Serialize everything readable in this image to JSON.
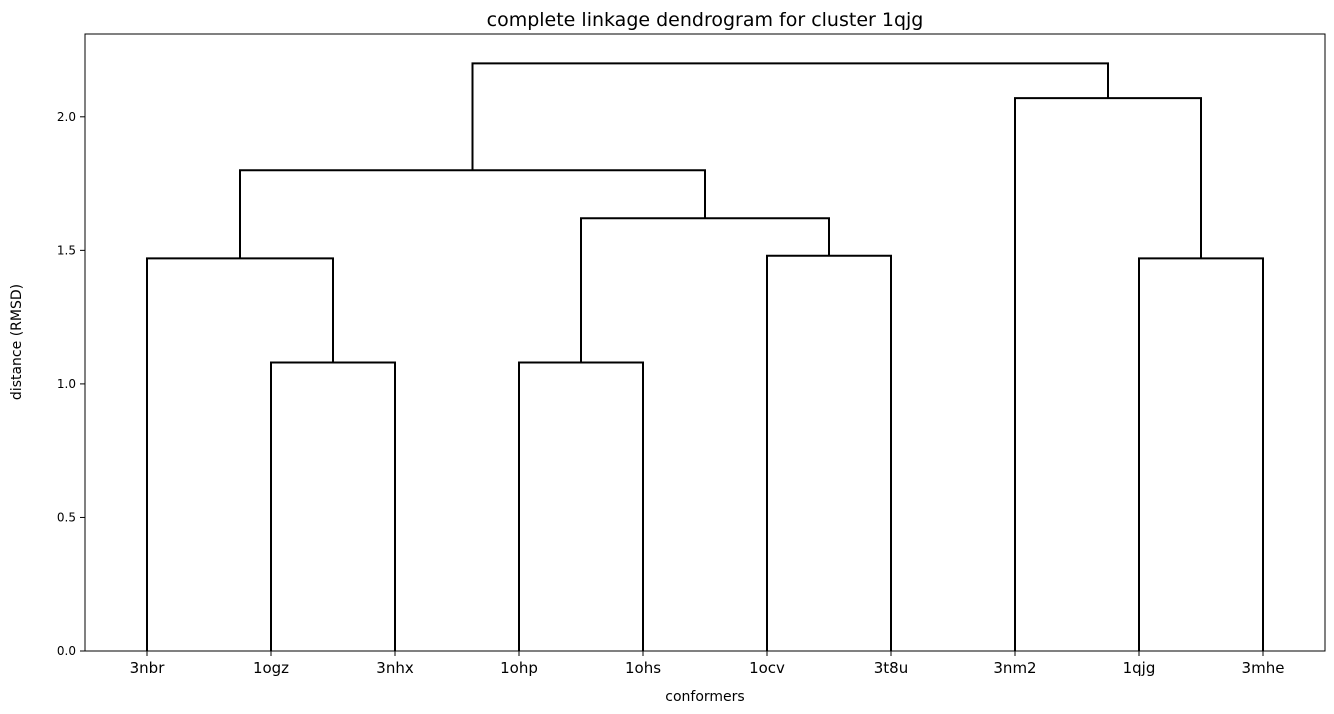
{
  "chart_data": {
    "type": "dendrogram",
    "title": "complete linkage dendrogram for cluster 1qjg",
    "xlabel": "conformers",
    "ylabel": "distance (RMSD)",
    "ylim": [
      0.0,
      2.31
    ],
    "yticks": [
      0.0,
      0.5,
      1.0,
      1.5,
      2.0
    ],
    "ytick_labels": [
      "0.0",
      "0.5",
      "1.0",
      "1.5",
      "2.0"
    ],
    "leaves": [
      "3nbr",
      "1ogz",
      "3nhx",
      "1ohp",
      "1ohs",
      "1ocv",
      "3t8u",
      "3nm2",
      "1qjg",
      "3mhe"
    ],
    "merges": [
      {
        "left": 1,
        "right": 2,
        "height": 1.08
      },
      {
        "left": 3,
        "right": 4,
        "height": 1.08
      },
      {
        "left": 0,
        "right": 10,
        "height": 1.47
      },
      {
        "left": 8,
        "right": 9,
        "height": 1.47
      },
      {
        "left": 5,
        "right": 6,
        "height": 1.48
      },
      {
        "left": 11,
        "right": 14,
        "height": 1.62
      },
      {
        "left": 12,
        "right": 15,
        "height": 1.8
      },
      {
        "left": 7,
        "right": 13,
        "height": 2.07
      },
      {
        "left": 16,
        "right": 17,
        "height": 2.2
      }
    ],
    "line_color": "#000000",
    "grid": false
  }
}
